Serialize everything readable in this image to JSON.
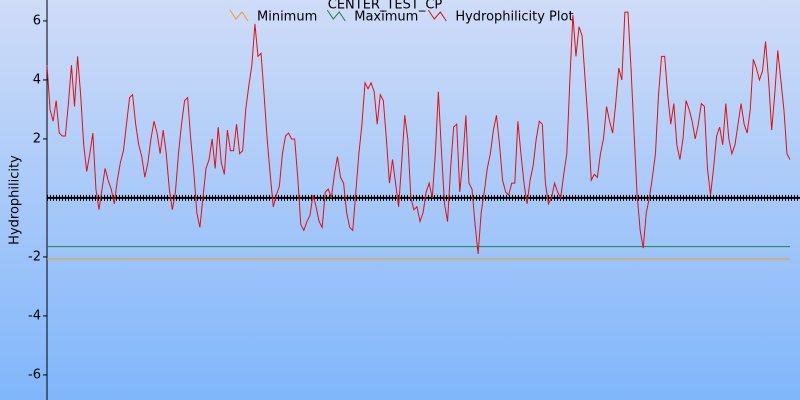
{
  "chart_data": {
    "type": "line",
    "title": "CENTER_TEST_CP",
    "y_label": "Hydrophilicity",
    "ylim": [
      -6.85,
      6.71
    ],
    "yticks": [
      -6,
      -4,
      -2,
      2,
      4,
      6
    ],
    "grid": false,
    "legend": "top",
    "series": [
      {
        "name": "Minimum",
        "color": "#f0a020",
        "value": -2.07
      },
      {
        "name": "Maximum",
        "color": "#208040",
        "value": -1.65
      },
      {
        "name": "Hydrophilicity Plot",
        "color": "#e01010",
        "values": [
          4.5,
          3,
          2.6,
          3.3,
          2.2,
          2.1,
          2.1,
          3.2,
          4.5,
          3.1,
          4.8,
          3.5,
          1.8,
          0.9,
          1.5,
          2.2,
          0.3,
          -0.4,
          0.3,
          1.0,
          0.6,
          0.3,
          -0.2,
          0.6,
          1.2,
          1.6,
          2.5,
          3.4,
          3.5,
          2.5,
          1.8,
          1.4,
          0.7,
          1.2,
          2.0,
          2.6,
          2.2,
          1.5,
          2.3,
          1.5,
          0.3,
          -0.4,
          0.2,
          1.5,
          2.5,
          3.3,
          3.4,
          2.0,
          0.9,
          -0.5,
          -1.0,
          0,
          1.0,
          1.3,
          2.0,
          1.0,
          2.4,
          1.2,
          0.8,
          2.3,
          1.6,
          1.6,
          2.5,
          1.5,
          1.6,
          3.0,
          3.8,
          4.5,
          5.9,
          4.8,
          4.9,
          3.5,
          2.0,
          0.8,
          -0.3,
          0.1,
          0.4,
          1.5,
          2.1,
          2.2,
          2.0,
          2.0,
          0.7,
          -0.9,
          -1.1,
          -0.8,
          -0.6,
          0.1,
          -0.3,
          -0.8,
          -1.0,
          0.2,
          0.3,
          0.0,
          0.8,
          1.4,
          0.7,
          0.5,
          -0.5,
          -1.0,
          -1.1,
          0.2,
          1.5,
          2.5,
          3.9,
          3.7,
          3.9,
          3.6,
          2.5,
          3.5,
          3.3,
          2.0,
          0.5,
          1.3,
          0.5,
          -0.3,
          1.2,
          2.8,
          2.0,
          0.0,
          -0.4,
          -0.3,
          -0.8,
          -0.5,
          0.2,
          0.5,
          0.0,
          1.5,
          3.6,
          1.6,
          -0.2,
          -0.8,
          1.0,
          2.4,
          2.5,
          0.2,
          1.3,
          2.8,
          0.5,
          0.3,
          -0.9,
          -1.9,
          -0.5,
          0.2,
          1.0,
          1.5,
          2.3,
          2.8,
          1.8,
          0.6,
          0.2,
          0.1,
          0.5,
          0.5,
          2.6,
          1.5,
          0.5,
          -0.2,
          0.6,
          1.1,
          2.0,
          2.6,
          2.5,
          0.5,
          -0.2,
          0.0,
          0.5,
          0.2,
          0.0,
          0.8,
          1.5,
          4.0,
          6.2,
          4.8,
          5.8,
          5.5,
          4.0,
          2.5,
          0.6,
          0.8,
          0.7,
          1.5,
          2.0,
          3.1,
          2.6,
          2.2,
          3.2,
          4.4,
          4.0,
          6.3,
          6.3,
          4.4,
          2.2,
          0.1,
          -1.1,
          -1.7,
          -0.5,
          0.0,
          0.7,
          1.5,
          3.5,
          4.8,
          4.8,
          3.5,
          2.5,
          3.2,
          1.8,
          1.3,
          2.0,
          3.3,
          3.0,
          2.6,
          2.0,
          2.5,
          3.2,
          3.1,
          1.0,
          0.1,
          1.0,
          2.1,
          2.4,
          1.8,
          3.2,
          2.0,
          1.5,
          1.8,
          2.5,
          3.2,
          2.5,
          2.2,
          3.0,
          4.7,
          4.4,
          4.0,
          4.3,
          5.3,
          4.0,
          2.3,
          3.5,
          5.0,
          4.0,
          3.0,
          1.5,
          1.3
        ]
      }
    ]
  }
}
